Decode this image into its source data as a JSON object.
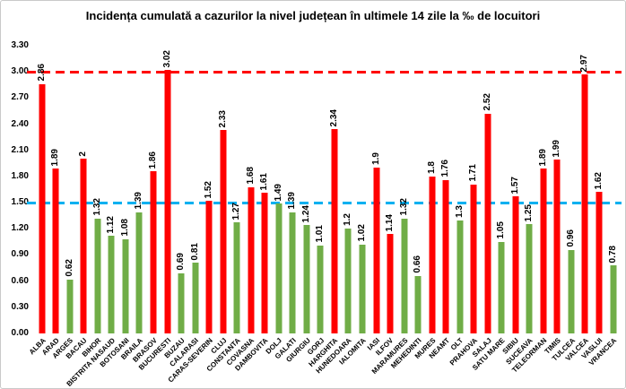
{
  "chart_data": {
    "type": "bar",
    "title": "Incidența cumulată a cazurilor la nivel județean în ultimele 14 zile la ‰ de locuitori",
    "xlabel": "",
    "ylabel": "",
    "ylim": [
      0,
      3.3
    ],
    "grid": false,
    "legend": false,
    "y_ticks": [
      "0.00",
      "0.30",
      "0.60",
      "0.90",
      "1.20",
      "1.50",
      "1.80",
      "2.10",
      "2.40",
      "2.70",
      "3.00",
      "3.30"
    ],
    "y_tick_values": [
      0,
      0.3,
      0.6,
      0.9,
      1.2,
      1.5,
      1.8,
      2.1,
      2.4,
      2.7,
      3.0,
      3.3
    ],
    "categories": [
      "ALBA",
      "ARAD",
      "ARGES",
      "BACAU",
      "BIHOR",
      "BISTRITA NASAUD",
      "BOTOSANI",
      "BRAILA",
      "BRASOV",
      "BUCURESTI",
      "BUZAU",
      "CALARASI",
      "CARAS-SEVERIN",
      "CLUJ",
      "CONSTANTA",
      "COVASNA",
      "DAMBOVITA",
      "DOLJ",
      "GALATI",
      "GIURGIU",
      "GORJ",
      "HARGHITA",
      "HUNEDOARA",
      "IALOMITA",
      "IASI",
      "ILFOV",
      "MARAMURES",
      "MEHEDINTI",
      "MURES",
      "NEAMT",
      "OLT",
      "PRAHOVA",
      "SALAJ",
      "SATU MARE",
      "SIBIU",
      "SUCEAVA",
      "TELEORMAN",
      "TIMIS",
      "TULCEA",
      "VALCEA",
      "VASLUI",
      "VRANCEA"
    ],
    "values": [
      2.86,
      1.89,
      0.62,
      2,
      1.32,
      1.12,
      1.08,
      1.39,
      1.86,
      3.02,
      0.69,
      0.81,
      1.52,
      2.33,
      1.27,
      1.68,
      1.61,
      1.49,
      1.39,
      1.24,
      1.01,
      2.34,
      1.2,
      1.02,
      1.9,
      1.14,
      1.32,
      0.66,
      1.8,
      1.76,
      1.3,
      1.71,
      2.52,
      1.05,
      1.57,
      1.25,
      1.89,
      1.99,
      0.96,
      2.97,
      1.62,
      0.78
    ],
    "value_labels": [
      "2.86",
      "1.89",
      "0.62",
      "2",
      "1.32",
      "1.12",
      "1.08",
      "1.39",
      "1.86",
      "3.02",
      "0.69",
      "0.81",
      "1.52",
      "2.33",
      "1.27",
      "1.68",
      "1.61",
      "1.49",
      "1.39",
      "1.24",
      "1.01",
      "2.34",
      "1.2",
      "1.02",
      "1.9",
      "1.14",
      "1.32",
      "0.66",
      "1.8",
      "1.76",
      "1.3",
      "1.71",
      "2.52",
      "1.05",
      "1.57",
      "1.25",
      "1.89",
      "1.99",
      "0.96",
      "2.97",
      "1.62",
      "0.78"
    ],
    "bar_color_keys": [
      "red",
      "red",
      "green",
      "red",
      "green",
      "green",
      "green",
      "green",
      "red",
      "red",
      "green",
      "green",
      "red",
      "red",
      "green",
      "red",
      "red",
      "green",
      "green",
      "green",
      "green",
      "red",
      "green",
      "green",
      "red",
      "red",
      "green",
      "green",
      "red",
      "red",
      "green",
      "red",
      "red",
      "green",
      "red",
      "green",
      "red",
      "red",
      "green",
      "red",
      "red",
      "green"
    ],
    "bar_palette": {
      "red": "#FF0000",
      "green": "#70AD47"
    },
    "reference_lines": [
      {
        "label": "3.00",
        "value": 3.0,
        "color": "#FF0000",
        "style": "dashed"
      },
      {
        "label": "1.50",
        "value": 1.5,
        "color": "#00B0F0",
        "style": "dashed"
      }
    ]
  }
}
